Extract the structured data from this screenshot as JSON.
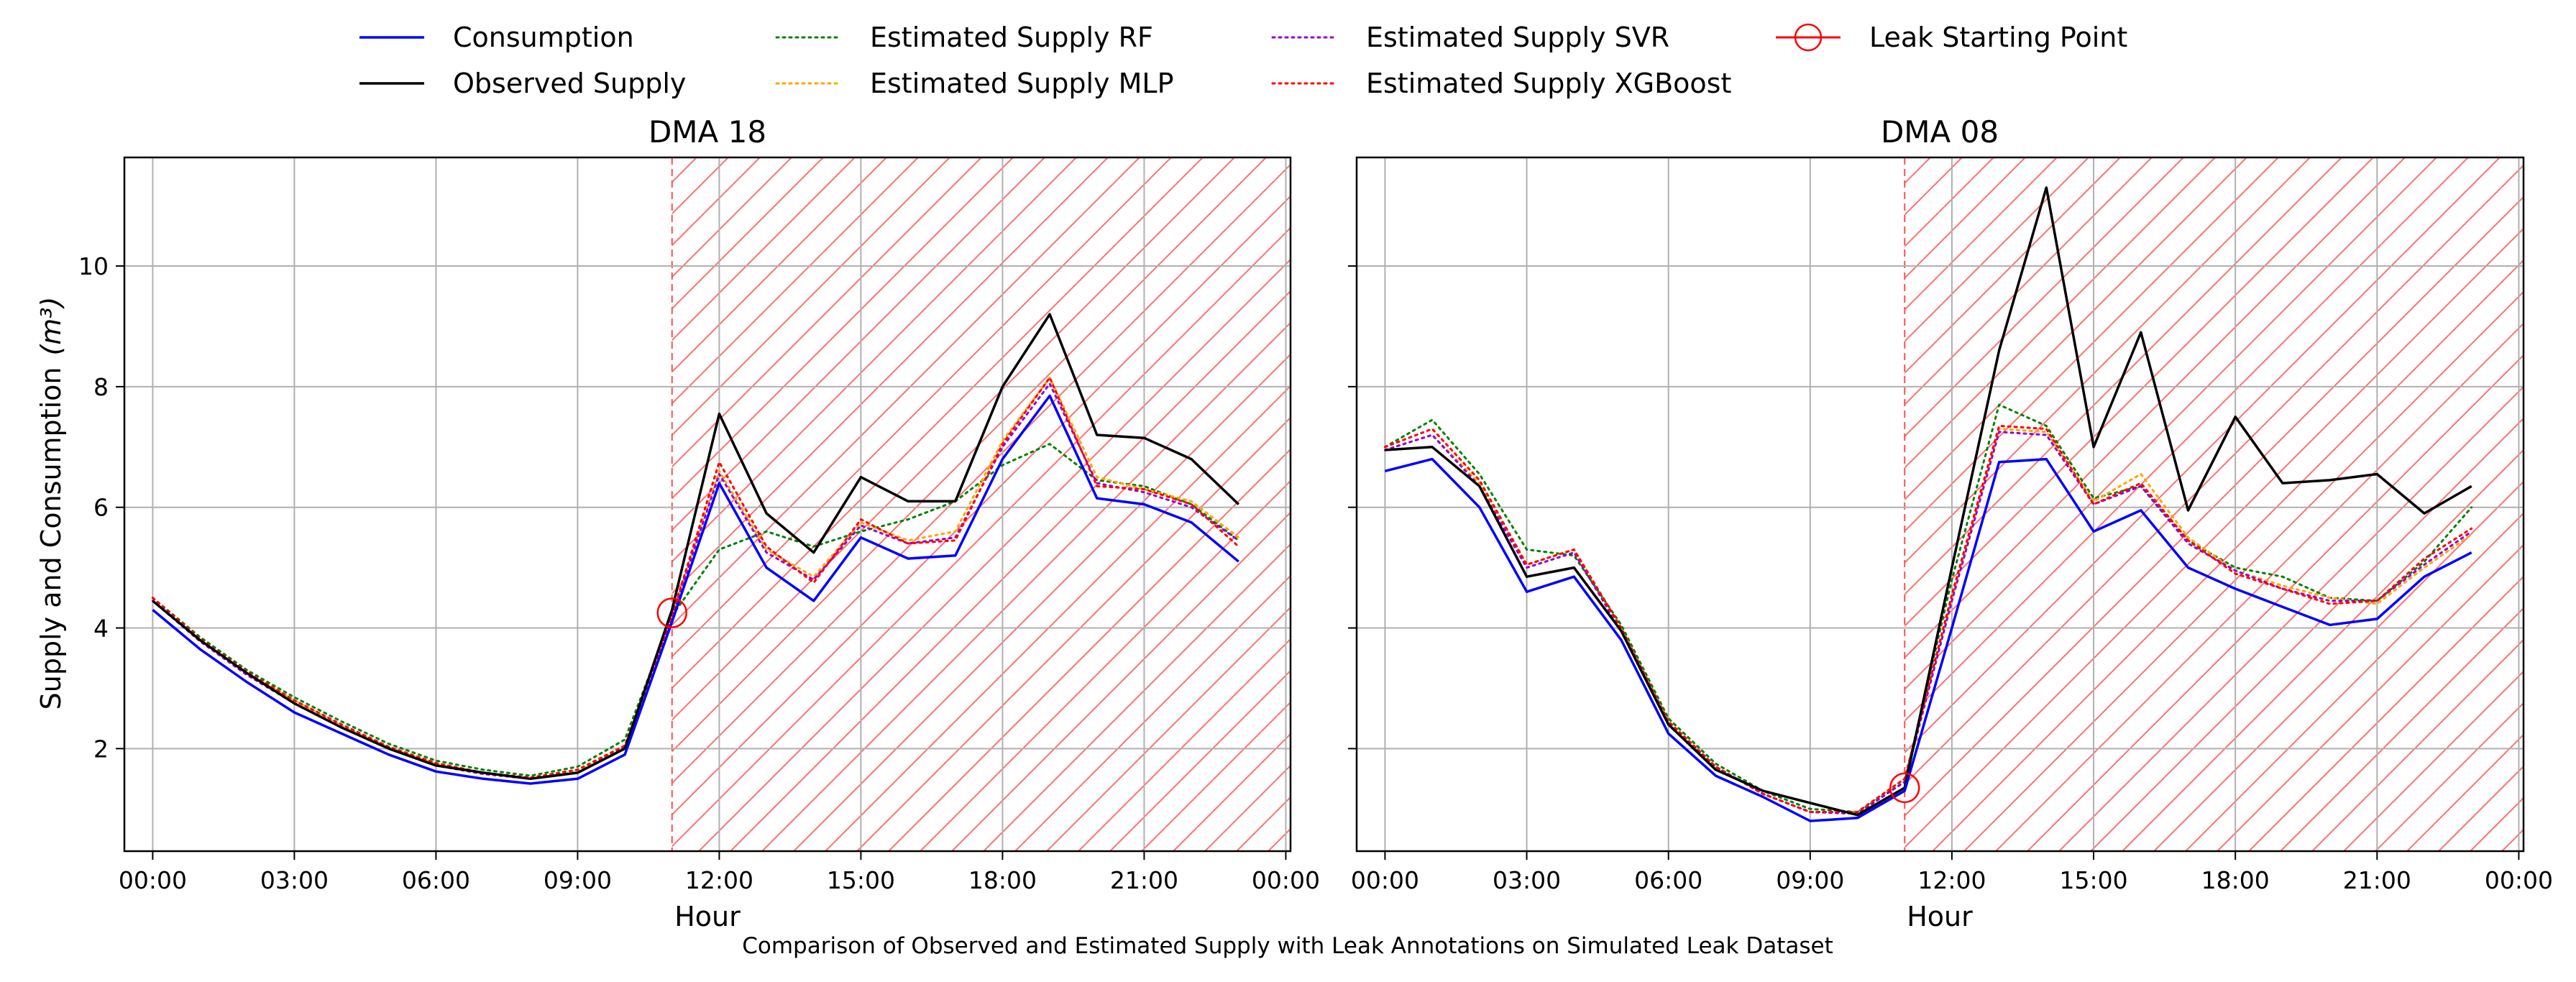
{
  "caption": "Comparison of Observed and Estimated Supply with Leak Annotations on Simulated Leak Dataset",
  "legend": [
    {
      "label": "Consumption",
      "color": "#0000ff",
      "style": "solid"
    },
    {
      "label": "Observed Supply",
      "color": "#000000",
      "style": "solid"
    },
    {
      "label": "Estimated Supply RF",
      "color": "#008000",
      "style": "dotted"
    },
    {
      "label": "Estimated Supply MLP",
      "color": "#ffa500",
      "style": "dotted"
    },
    {
      "label": "Estimated Supply SVR",
      "color": "#9400d3",
      "style": "dotted"
    },
    {
      "label": "Estimated Supply XGBoost",
      "color": "#ff0000",
      "style": "dotted"
    },
    {
      "label": "Leak Starting Point",
      "color": "#ff0000",
      "style": "marker"
    }
  ],
  "chart_data": [
    {
      "type": "line",
      "title": "DMA 18",
      "xlabel": "Hour",
      "ylabel": "Supply and Consumption",
      "ylabel_unit": "(m³)",
      "x": [
        0,
        1,
        2,
        3,
        4,
        5,
        6,
        7,
        8,
        9,
        10,
        11,
        12,
        13,
        14,
        15,
        16,
        17,
        18,
        19,
        20,
        21,
        22,
        23
      ],
      "xlim": [
        -0.6,
        24.1
      ],
      "ylim": [
        0.3,
        11.8
      ],
      "xticks": [
        0,
        3,
        6,
        9,
        12,
        15,
        18,
        21,
        24
      ],
      "xtick_labels": [
        "00:00",
        "03:00",
        "06:00",
        "09:00",
        "12:00",
        "15:00",
        "18:00",
        "21:00",
        "00:00"
      ],
      "yticks": [
        2,
        4,
        6,
        8,
        10
      ],
      "ytick_labels": [
        "2",
        "4",
        "6",
        "8",
        "10"
      ],
      "grid": true,
      "leak_start": {
        "x": 11,
        "y": 4.25
      },
      "leak_region": [
        11,
        24.1
      ],
      "series": [
        {
          "name": "Consumption",
          "values": [
            4.3,
            3.65,
            3.1,
            2.6,
            2.25,
            1.9,
            1.62,
            1.5,
            1.42,
            1.5,
            1.9,
            4.1,
            6.4,
            5.0,
            4.45,
            5.5,
            5.15,
            5.2,
            6.8,
            7.85,
            6.15,
            6.05,
            5.75,
            5.1
          ]
        },
        {
          "name": "Observed Supply",
          "values": [
            4.45,
            3.8,
            3.25,
            2.75,
            2.35,
            2.0,
            1.72,
            1.6,
            1.5,
            1.6,
            2.0,
            4.3,
            7.55,
            5.9,
            5.25,
            6.5,
            6.1,
            6.1,
            8.0,
            9.2,
            7.2,
            7.15,
            6.8,
            6.05
          ]
        },
        {
          "name": "Estimated Supply RF",
          "values": [
            4.5,
            3.85,
            3.3,
            2.85,
            2.45,
            2.08,
            1.8,
            1.65,
            1.55,
            1.7,
            2.15,
            4.2,
            5.3,
            5.6,
            5.35,
            5.6,
            5.8,
            6.1,
            6.7,
            7.05,
            6.45,
            6.35,
            6.05,
            5.45
          ]
        },
        {
          "name": "Estimated Supply MLP",
          "values": [
            4.45,
            3.8,
            3.25,
            2.8,
            2.38,
            2.02,
            1.75,
            1.6,
            1.5,
            1.62,
            2.05,
            4.25,
            6.6,
            5.3,
            4.85,
            5.75,
            5.45,
            5.6,
            7.1,
            8.15,
            6.5,
            6.3,
            6.1,
            5.5
          ]
        },
        {
          "name": "Estimated Supply SVR",
          "values": [
            4.45,
            3.78,
            3.22,
            2.75,
            2.36,
            2.0,
            1.72,
            1.58,
            1.5,
            1.6,
            2.02,
            4.2,
            6.55,
            5.25,
            4.8,
            5.7,
            5.4,
            5.5,
            7.0,
            8.05,
            6.4,
            6.25,
            6.0,
            5.45
          ]
        },
        {
          "name": "Estimated Supply XGBoost",
          "values": [
            4.5,
            3.82,
            3.27,
            2.8,
            2.4,
            2.03,
            1.76,
            1.6,
            1.52,
            1.65,
            2.05,
            4.2,
            6.75,
            5.35,
            4.75,
            5.8,
            5.4,
            5.45,
            7.05,
            8.15,
            6.35,
            6.3,
            6.05,
            5.35
          ]
        }
      ]
    },
    {
      "type": "line",
      "title": "DMA 08",
      "xlabel": "Hour",
      "ylabel": "",
      "x": [
        0,
        1,
        2,
        3,
        4,
        5,
        6,
        7,
        8,
        9,
        10,
        11,
        12,
        13,
        14,
        15,
        16,
        17,
        18,
        19,
        20,
        21,
        22,
        23
      ],
      "xlim": [
        -0.6,
        24.1
      ],
      "ylim": [
        0.3,
        11.8
      ],
      "xticks": [
        0,
        3,
        6,
        9,
        12,
        15,
        18,
        21,
        24
      ],
      "xtick_labels": [
        "00:00",
        "03:00",
        "06:00",
        "09:00",
        "12:00",
        "15:00",
        "18:00",
        "21:00",
        "00:00"
      ],
      "yticks": [
        2,
        4,
        6,
        8,
        10
      ],
      "ytick_labels": [
        "2",
        "4",
        "6",
        "8",
        "10"
      ],
      "grid": true,
      "leak_start": {
        "x": 11,
        "y": 1.35
      },
      "leak_region": [
        11,
        24.1
      ],
      "series": [
        {
          "name": "Consumption",
          "values": [
            6.6,
            6.8,
            6.0,
            4.6,
            4.85,
            3.8,
            2.25,
            1.55,
            1.2,
            0.8,
            0.85,
            1.3,
            4.0,
            6.75,
            6.8,
            5.6,
            5.95,
            5.0,
            4.65,
            4.35,
            4.05,
            4.15,
            4.85,
            5.25
          ]
        },
        {
          "name": "Observed Supply",
          "values": [
            6.95,
            7.0,
            6.35,
            4.85,
            5.0,
            3.95,
            2.4,
            1.65,
            1.3,
            1.1,
            0.9,
            1.35,
            5.0,
            8.6,
            11.3,
            7.0,
            8.9,
            5.95,
            7.5,
            6.4,
            6.45,
            6.55,
            5.9,
            6.35
          ]
        },
        {
          "name": "Estimated Supply RF",
          "values": [
            7.0,
            7.45,
            6.55,
            5.3,
            5.2,
            4.05,
            2.5,
            1.75,
            1.3,
            1.0,
            0.95,
            1.45,
            4.8,
            7.7,
            7.35,
            6.15,
            6.35,
            5.45,
            5.0,
            4.85,
            4.5,
            4.45,
            5.1,
            6.0
          ]
        },
        {
          "name": "Estimated Supply MLP",
          "values": [
            6.95,
            7.2,
            6.4,
            5.05,
            5.3,
            4.0,
            2.45,
            1.7,
            1.25,
            0.95,
            0.95,
            1.5,
            4.5,
            7.3,
            7.25,
            6.1,
            6.55,
            5.5,
            4.95,
            4.7,
            4.5,
            4.4,
            5.0,
            5.55
          ]
        },
        {
          "name": "Estimated Supply SVR",
          "values": [
            6.95,
            7.2,
            6.35,
            5.0,
            5.25,
            3.95,
            2.4,
            1.7,
            1.25,
            0.95,
            0.92,
            1.45,
            4.45,
            7.25,
            7.2,
            6.05,
            6.35,
            5.4,
            4.95,
            4.65,
            4.45,
            4.45,
            5.05,
            5.6
          ]
        },
        {
          "name": "Estimated Supply XGBoost",
          "values": [
            7.0,
            7.3,
            6.45,
            5.05,
            5.3,
            4.0,
            2.45,
            1.7,
            1.25,
            0.95,
            0.95,
            1.5,
            4.55,
            7.35,
            7.3,
            6.05,
            6.4,
            5.45,
            4.9,
            4.65,
            4.4,
            4.45,
            5.15,
            5.65
          ]
        }
      ]
    }
  ]
}
